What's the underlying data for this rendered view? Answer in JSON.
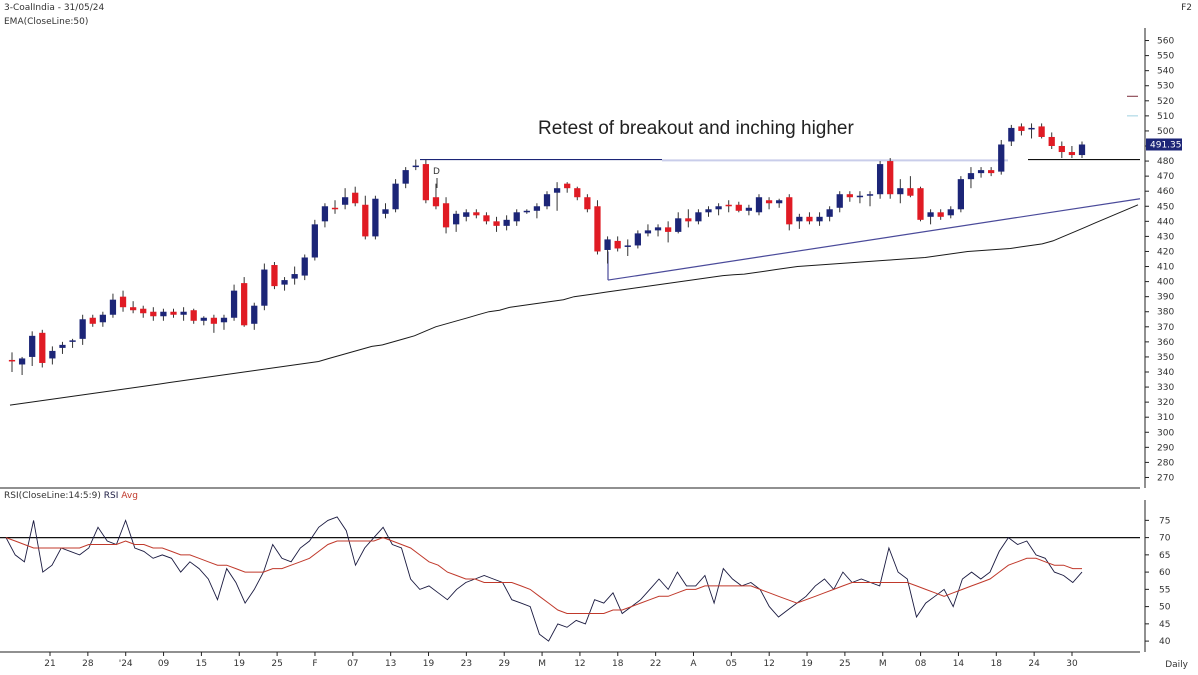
{
  "header": {
    "symbol_line": "3-CoalIndia - 31/05/24",
    "ema_line": "EMA(CloseLine:50)",
    "top_right": "F2",
    "rsi_label": "RSI(CloseLine:14:5:9)",
    "rsi_avg_label": "RSI",
    "rsi_avg_word": "Avg",
    "period": "Daily"
  },
  "colors": {
    "up_candle": "#1c2577",
    "down_candle": "#e01b24",
    "ema": "#1a1a1a",
    "trendline": "#4a4a9a",
    "rsi_line": "#1a1a40",
    "rsi_avg": "#c0392b",
    "last_price_box": "#1c2577"
  },
  "chart_data": [
    {
      "type": "candlestick",
      "title": "",
      "annotation": "Retest of breakout and inching higher",
      "y_ticks": [
        560,
        550,
        540,
        530,
        520,
        510,
        500,
        490,
        480,
        470,
        460,
        450,
        440,
        430,
        420,
        410,
        400,
        390,
        380,
        370,
        360,
        350,
        340,
        330,
        320,
        310,
        300,
        290,
        280,
        270
      ],
      "ylim": [
        265,
        565
      ],
      "last_price_label": "491.35",
      "x_ticks": [
        "21",
        "28",
        "'24",
        "09",
        "15",
        "19",
        "25",
        "F",
        "07",
        "13",
        "19",
        "23",
        "29",
        "M",
        "12",
        "18",
        "22",
        "A",
        "05",
        "12",
        "19",
        "25",
        "M",
        "08",
        "14",
        "18",
        "24",
        "30"
      ],
      "candles": [
        {
          "o": 348,
          "h": 353,
          "l": 340,
          "c": 347
        },
        {
          "o": 345,
          "h": 350,
          "l": 338,
          "c": 349
        },
        {
          "o": 350,
          "h": 367,
          "l": 344,
          "c": 364
        },
        {
          "o": 366,
          "h": 368,
          "l": 343,
          "c": 346
        },
        {
          "o": 349,
          "h": 357,
          "l": 345,
          "c": 354
        },
        {
          "o": 356,
          "h": 360,
          "l": 352,
          "c": 358
        },
        {
          "o": 360,
          "h": 362,
          "l": 356,
          "c": 361
        },
        {
          "o": 362,
          "h": 378,
          "l": 358,
          "c": 375
        },
        {
          "o": 376,
          "h": 378,
          "l": 370,
          "c": 372
        },
        {
          "o": 373,
          "h": 380,
          "l": 370,
          "c": 378
        },
        {
          "o": 378,
          "h": 392,
          "l": 376,
          "c": 388
        },
        {
          "o": 390,
          "h": 394,
          "l": 380,
          "c": 383
        },
        {
          "o": 383,
          "h": 387,
          "l": 379,
          "c": 381
        },
        {
          "o": 382,
          "h": 384,
          "l": 376,
          "c": 379
        },
        {
          "o": 380,
          "h": 383,
          "l": 374,
          "c": 377
        },
        {
          "o": 377,
          "h": 382,
          "l": 374,
          "c": 380
        },
        {
          "o": 380,
          "h": 382,
          "l": 376,
          "c": 378
        },
        {
          "o": 378,
          "h": 383,
          "l": 374,
          "c": 380
        },
        {
          "o": 381,
          "h": 382,
          "l": 372,
          "c": 374
        },
        {
          "o": 374,
          "h": 377,
          "l": 371,
          "c": 376
        },
        {
          "o": 376,
          "h": 378,
          "l": 366,
          "c": 372
        },
        {
          "o": 373,
          "h": 378,
          "l": 368,
          "c": 376
        },
        {
          "o": 376,
          "h": 398,
          "l": 374,
          "c": 394
        },
        {
          "o": 399,
          "h": 403,
          "l": 370,
          "c": 371
        },
        {
          "o": 372,
          "h": 386,
          "l": 368,
          "c": 384
        },
        {
          "o": 384,
          "h": 412,
          "l": 381,
          "c": 408
        },
        {
          "o": 411,
          "h": 413,
          "l": 395,
          "c": 397
        },
        {
          "o": 398,
          "h": 403,
          "l": 394,
          "c": 401
        },
        {
          "o": 402,
          "h": 410,
          "l": 398,
          "c": 405
        },
        {
          "o": 404,
          "h": 418,
          "l": 401,
          "c": 416
        },
        {
          "o": 416,
          "h": 441,
          "l": 414,
          "c": 438
        },
        {
          "o": 440,
          "h": 452,
          "l": 436,
          "c": 450
        },
        {
          "o": 449,
          "h": 454,
          "l": 445,
          "c": 448
        },
        {
          "o": 451,
          "h": 462,
          "l": 448,
          "c": 456
        },
        {
          "o": 459,
          "h": 463,
          "l": 450,
          "c": 452
        },
        {
          "o": 451,
          "h": 457,
          "l": 428,
          "c": 430
        },
        {
          "o": 430,
          "h": 457,
          "l": 428,
          "c": 455
        },
        {
          "o": 445,
          "h": 452,
          "l": 442,
          "c": 448
        },
        {
          "o": 448,
          "h": 468,
          "l": 446,
          "c": 465
        },
        {
          "o": 465,
          "h": 476,
          "l": 462,
          "c": 474
        },
        {
          "o": 476,
          "h": 481,
          "l": 474,
          "c": 477
        },
        {
          "o": 478,
          "h": 481,
          "l": 452,
          "c": 454
        },
        {
          "o": 456,
          "h": 465,
          "l": 448,
          "c": 450
        },
        {
          "o": 452,
          "h": 456,
          "l": 432,
          "c": 436
        },
        {
          "o": 438,
          "h": 447,
          "l": 433,
          "c": 445
        },
        {
          "o": 443,
          "h": 448,
          "l": 440,
          "c": 446
        },
        {
          "o": 446,
          "h": 448,
          "l": 442,
          "c": 444
        },
        {
          "o": 444,
          "h": 446,
          "l": 438,
          "c": 440
        },
        {
          "o": 440,
          "h": 443,
          "l": 433,
          "c": 437
        },
        {
          "o": 437,
          "h": 444,
          "l": 434,
          "c": 441
        },
        {
          "o": 440,
          "h": 448,
          "l": 437,
          "c": 446
        },
        {
          "o": 446,
          "h": 448,
          "l": 445,
          "c": 447
        },
        {
          "o": 447,
          "h": 452,
          "l": 442,
          "c": 450
        },
        {
          "o": 450,
          "h": 460,
          "l": 448,
          "c": 458
        },
        {
          "o": 459,
          "h": 466,
          "l": 447,
          "c": 462
        },
        {
          "o": 465,
          "h": 466,
          "l": 459,
          "c": 462
        },
        {
          "o": 462,
          "h": 463,
          "l": 454,
          "c": 456
        },
        {
          "o": 456,
          "h": 458,
          "l": 446,
          "c": 448
        },
        {
          "o": 450,
          "h": 454,
          "l": 418,
          "c": 420
        },
        {
          "o": 421,
          "h": 430,
          "l": 412,
          "c": 428
        },
        {
          "o": 427,
          "h": 430,
          "l": 420,
          "c": 422
        },
        {
          "o": 423,
          "h": 428,
          "l": 417,
          "c": 424
        },
        {
          "o": 424,
          "h": 434,
          "l": 422,
          "c": 432
        },
        {
          "o": 432,
          "h": 438,
          "l": 430,
          "c": 434
        },
        {
          "o": 434,
          "h": 438,
          "l": 430,
          "c": 436
        },
        {
          "o": 436,
          "h": 440,
          "l": 426,
          "c": 433
        },
        {
          "o": 433,
          "h": 446,
          "l": 432,
          "c": 442
        },
        {
          "o": 442,
          "h": 448,
          "l": 436,
          "c": 440
        },
        {
          "o": 440,
          "h": 448,
          "l": 438,
          "c": 446
        },
        {
          "o": 446,
          "h": 450,
          "l": 443,
          "c": 448
        },
        {
          "o": 448,
          "h": 452,
          "l": 444,
          "c": 450
        },
        {
          "o": 451,
          "h": 454,
          "l": 446,
          "c": 450
        },
        {
          "o": 451,
          "h": 453,
          "l": 446,
          "c": 447
        },
        {
          "o": 447,
          "h": 451,
          "l": 444,
          "c": 449
        },
        {
          "o": 446,
          "h": 458,
          "l": 444,
          "c": 456
        },
        {
          "o": 454,
          "h": 456,
          "l": 448,
          "c": 452
        },
        {
          "o": 452,
          "h": 455,
          "l": 449,
          "c": 454
        },
        {
          "o": 456,
          "h": 458,
          "l": 434,
          "c": 438
        },
        {
          "o": 440,
          "h": 445,
          "l": 435,
          "c": 443
        },
        {
          "o": 443,
          "h": 446,
          "l": 438,
          "c": 440
        },
        {
          "o": 440,
          "h": 446,
          "l": 437,
          "c": 443
        },
        {
          "o": 443,
          "h": 450,
          "l": 440,
          "c": 448
        },
        {
          "o": 449,
          "h": 460,
          "l": 446,
          "c": 458
        },
        {
          "o": 458,
          "h": 460,
          "l": 453,
          "c": 456
        },
        {
          "o": 456,
          "h": 460,
          "l": 452,
          "c": 457
        },
        {
          "o": 457,
          "h": 460,
          "l": 450,
          "c": 458
        },
        {
          "o": 458,
          "h": 480,
          "l": 455,
          "c": 478
        },
        {
          "o": 480,
          "h": 482,
          "l": 455,
          "c": 458
        },
        {
          "o": 458,
          "h": 468,
          "l": 452,
          "c": 462
        },
        {
          "o": 462,
          "h": 470,
          "l": 456,
          "c": 457
        },
        {
          "o": 462,
          "h": 463,
          "l": 440,
          "c": 441
        },
        {
          "o": 443,
          "h": 448,
          "l": 438,
          "c": 446
        },
        {
          "o": 446,
          "h": 448,
          "l": 441,
          "c": 443
        },
        {
          "o": 444,
          "h": 450,
          "l": 442,
          "c": 448
        },
        {
          "o": 448,
          "h": 470,
          "l": 446,
          "c": 468
        },
        {
          "o": 468,
          "h": 476,
          "l": 462,
          "c": 472
        },
        {
          "o": 472,
          "h": 476,
          "l": 469,
          "c": 474
        },
        {
          "o": 474,
          "h": 476,
          "l": 470,
          "c": 472
        },
        {
          "o": 473,
          "h": 494,
          "l": 471,
          "c": 491
        },
        {
          "o": 493,
          "h": 504,
          "l": 490,
          "c": 502
        },
        {
          "o": 503,
          "h": 505,
          "l": 497,
          "c": 500
        },
        {
          "o": 501,
          "h": 505,
          "l": 495,
          "c": 502
        },
        {
          "o": 503,
          "h": 505,
          "l": 495,
          "c": 496
        },
        {
          "o": 496,
          "h": 499,
          "l": 488,
          "c": 490
        },
        {
          "o": 490,
          "h": 493,
          "l": 482,
          "c": 486
        },
        {
          "o": 486,
          "h": 490,
          "l": 482,
          "c": 484
        },
        {
          "o": 484,
          "h": 493,
          "l": 482,
          "c": 491
        }
      ],
      "ema50": [
        318,
        319,
        320,
        321,
        322,
        323,
        324,
        325,
        326,
        327,
        328,
        329,
        330,
        331,
        332,
        333,
        334,
        335,
        336,
        337,
        338,
        339,
        340,
        341,
        342,
        343,
        344,
        345,
        346,
        347,
        349,
        351,
        353,
        355,
        357,
        358,
        360,
        362,
        364,
        367,
        370,
        372,
        374,
        376,
        378,
        380,
        381,
        383,
        384,
        385,
        386,
        387,
        388,
        390,
        391,
        392,
        393,
        394,
        395,
        396,
        397,
        398,
        399,
        400,
        401,
        402,
        403,
        404,
        404.5,
        405,
        406,
        407,
        408,
        409,
        410,
        410.5,
        411,
        411.5,
        412,
        412.5,
        413,
        413.5,
        414,
        414.5,
        415,
        415.5,
        416,
        417,
        418,
        419,
        420,
        420.5,
        421,
        421.5,
        422,
        423,
        424,
        425,
        427,
        430,
        433,
        436,
        439,
        442,
        445,
        448,
        451
      ]
    },
    {
      "type": "line",
      "title": "",
      "y_ticks": [
        75,
        70,
        65,
        60,
        55,
        50,
        45,
        40
      ],
      "ylim": [
        38,
        78
      ],
      "reference_line": 70,
      "series": [
        {
          "name": "RSI",
          "values": [
            70,
            65,
            63,
            75,
            60,
            62,
            67,
            66,
            65,
            67,
            73,
            69,
            68,
            75,
            67,
            66,
            64,
            65,
            64,
            60,
            63,
            61,
            58,
            52,
            61,
            57,
            51,
            55,
            60,
            68,
            64,
            63,
            67,
            69,
            73,
            75,
            76,
            72,
            62,
            67,
            70,
            73,
            68,
            67,
            58,
            55,
            56,
            54,
            52,
            55,
            57,
            58,
            59,
            58,
            57,
            52,
            51,
            50,
            42,
            40,
            45,
            44,
            46,
            45,
            52,
            51,
            54,
            48,
            50,
            52,
            55,
            58,
            55,
            60,
            56,
            56,
            59,
            51,
            61,
            58,
            56,
            57,
            55,
            50,
            47,
            49,
            51,
            53,
            56,
            58,
            55,
            60,
            57,
            58,
            57,
            56,
            67,
            60,
            58,
            47,
            51,
            53,
            55,
            50,
            58,
            60,
            58,
            60,
            66,
            70,
            68,
            69,
            65,
            64,
            60,
            59,
            57,
            60
          ]
        },
        {
          "name": "Avg",
          "values": [
            70,
            69,
            68,
            67,
            67,
            67,
            67,
            67,
            67,
            68,
            68,
            68,
            68,
            69,
            68,
            68,
            67,
            67,
            66,
            65,
            65,
            64,
            63,
            62,
            62,
            61,
            60,
            60,
            60,
            61,
            61,
            62,
            63,
            64,
            66,
            68,
            69,
            69,
            69,
            69,
            69,
            70,
            69,
            68,
            67,
            65,
            63,
            62,
            60,
            59,
            58,
            58,
            57,
            57,
            57,
            57,
            56,
            55,
            53,
            51,
            49,
            48,
            48,
            48,
            48,
            48,
            49,
            49,
            50,
            51,
            52,
            53,
            53,
            54,
            55,
            55,
            56,
            56,
            56,
            56,
            56,
            56,
            55,
            54,
            53,
            52,
            51,
            52,
            53,
            54,
            55,
            56,
            57,
            57,
            57,
            57,
            57,
            57,
            57,
            56,
            55,
            54,
            53,
            54,
            55,
            56,
            57,
            58,
            60,
            62,
            63,
            64,
            64,
            63,
            62,
            62,
            61,
            61
          ]
        }
      ]
    }
  ]
}
